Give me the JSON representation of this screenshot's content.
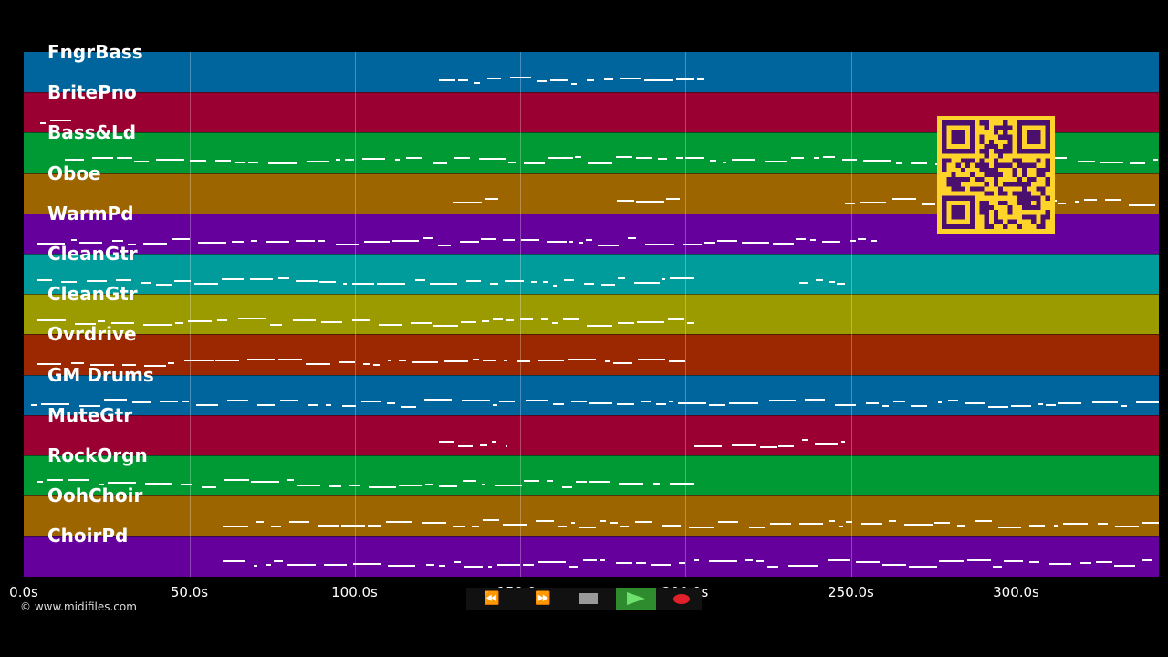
{
  "tracks": [
    {
      "name": "FngrBass",
      "color": "#00659d"
    },
    {
      "name": "BritePno",
      "color": "#9b0033"
    },
    {
      "name": "Bass&Ld",
      "color": "#009a34"
    },
    {
      "name": "Oboe",
      "color": "#9d6500"
    },
    {
      "name": "WarmPd",
      "color": "#65009d"
    },
    {
      "name": "CleanGtr",
      "color": "#009b9b"
    },
    {
      "name": "CleanGtr",
      "color": "#9b9b00"
    },
    {
      "name": "Ovrdrive",
      "color": "#9b2800"
    },
    {
      "name": "GM Drums",
      "color": "#00659d"
    },
    {
      "name": "MuteGtr",
      "color": "#9b0033"
    },
    {
      "name": "RockOrgn",
      "color": "#009a34"
    },
    {
      "name": "OohChoir",
      "color": "#9d6500"
    },
    {
      "name": "ChoirPd",
      "color": "#65009d"
    }
  ],
  "timeline": {
    "ticks": [
      "0.0s",
      "50.0s",
      "100.0s",
      "150.0s",
      "200.0s",
      "250.0s",
      "300.0s"
    ]
  },
  "footer": {
    "copyright": "© www.midifiles.com"
  },
  "transport": {
    "rewind_icon": "rewind-icon",
    "forward_icon": "fast-forward-icon",
    "stop_icon": "stop-icon",
    "play_icon": "play-icon",
    "record_icon": "record-icon",
    "play_color": "#2e8b2e",
    "record_color": "#e0202a"
  },
  "qr": {
    "color": "#ffd42a",
    "dark": "#4b0f6e"
  }
}
